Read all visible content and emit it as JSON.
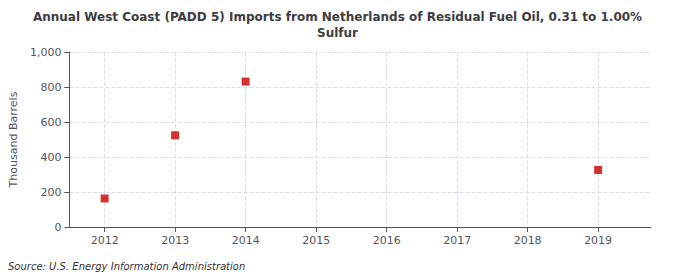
{
  "chart_data": {
    "type": "scatter",
    "title": "Annual West Coast (PADD 5) Imports from Netherlands of Residual Fuel Oil, 0.31 to 1.00%\nSulfur",
    "ylabel": "Thousand Barrels",
    "annotations": [
      "Source: U.S. Energy Information Administration"
    ],
    "x": [
      2012,
      2013,
      2014,
      2019
    ],
    "values": [
      163,
      524,
      831,
      326
    ],
    "color": "#cc0000",
    "marker": "square",
    "xlim": [
      2011.5,
      2019.75
    ],
    "xticks": [
      2012,
      2013,
      2014,
      2015,
      2016,
      2017,
      2018,
      2019
    ],
    "ylim": [
      0,
      1000
    ],
    "yticks": [
      0,
      200,
      400,
      600,
      800,
      {
        "value": 1000,
        "label": "1,000"
      }
    ],
    "grid": true
  }
}
